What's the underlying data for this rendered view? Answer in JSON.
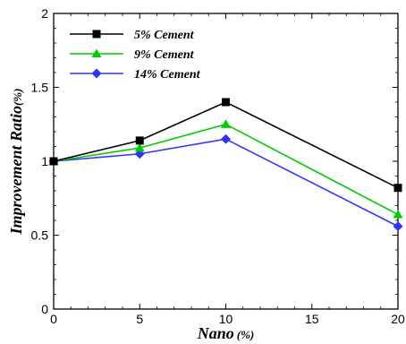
{
  "chart_data": {
    "type": "line",
    "x": [
      0,
      5,
      10,
      20
    ],
    "series": [
      {
        "name": "5% Cement",
        "values": [
          1.0,
          1.14,
          1.4,
          0.82
        ],
        "color": "#000000",
        "marker": "square"
      },
      {
        "name": "9% Cement",
        "values": [
          1.0,
          1.09,
          1.25,
          0.64
        ],
        "color": "#00cc00",
        "marker": "triangle"
      },
      {
        "name": "14% Cement",
        "values": [
          1.0,
          1.05,
          1.15,
          0.56
        ],
        "color": "#3333ff",
        "marker": "diamond"
      }
    ],
    "xlabel": "Nano",
    "xlabel_unit": "(%)",
    "ylabel": "Improvement Ratio",
    "ylabel_unit": "(%)",
    "xlim": [
      0,
      20
    ],
    "ylim": [
      0,
      2
    ],
    "xticks": [
      "0",
      "5",
      "10",
      "15",
      "20"
    ],
    "yticks": [
      "0",
      "0.5",
      "1",
      "1.5",
      "2"
    ],
    "grid": false,
    "legend_position": "top-left"
  }
}
